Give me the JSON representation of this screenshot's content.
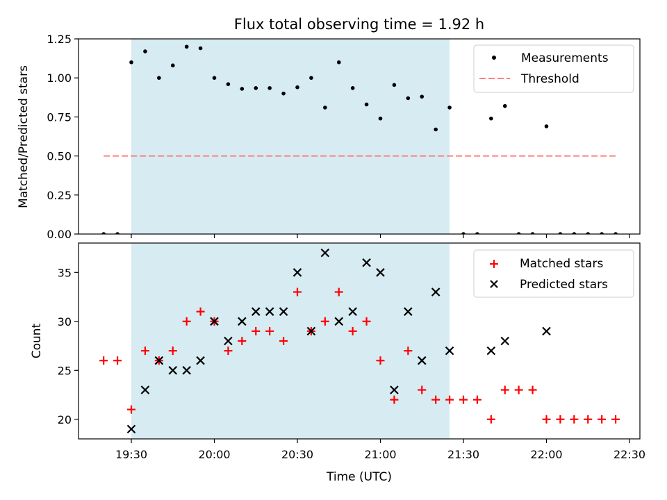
{
  "chart_data": {
    "type": "scatter",
    "title": "Flux total observing time = 1.92 h",
    "xlabel": "Time (UTC)",
    "x_ticks": [
      "19:30",
      "20:00",
      "20:30",
      "21:00",
      "21:30",
      "22:00",
      "22:30"
    ],
    "shaded_interval": {
      "start": "19:30",
      "end": "21:25",
      "color": "#add8e6"
    },
    "panels": [
      {
        "id": "ratio",
        "ylabel": "Matched/Predicted stars",
        "ylim": [
          0,
          1.25
        ],
        "y_ticks": [
          "0.00",
          "0.25",
          "0.50",
          "0.75",
          "1.00",
          "1.25"
        ],
        "legend_position": "top-right",
        "series": [
          {
            "name": "Measurements",
            "marker": "dot",
            "color": "#000000",
            "x": [
              "19:20",
              "19:25",
              "19:30",
              "19:35",
              "19:40",
              "19:45",
              "19:50",
              "19:55",
              "20:00",
              "20:05",
              "20:10",
              "20:15",
              "20:20",
              "20:25",
              "20:30",
              "20:35",
              "20:40",
              "20:45",
              "20:50",
              "20:55",
              "21:00",
              "21:05",
              "21:10",
              "21:15",
              "21:20",
              "21:25",
              "21:30",
              "21:35",
              "21:40",
              "21:45",
              "21:50",
              "21:55",
              "22:00",
              "22:05",
              "22:10",
              "22:15",
              "22:20",
              "22:25"
            ],
            "y": [
              0,
              0,
              1.1,
              1.17,
              1.0,
              1.08,
              1.2,
              1.19,
              1.0,
              0.96,
              0.93,
              0.935,
              0.935,
              0.9,
              0.94,
              1.0,
              0.81,
              1.1,
              0.935,
              0.83,
              0.74,
              0.955,
              0.87,
              0.88,
              0.67,
              0.81,
              0,
              0,
              0.74,
              0.82,
              0,
              0,
              0.69,
              0,
              0,
              0,
              0,
              0
            ]
          },
          {
            "name": "Threshold",
            "marker": "dashed-line",
            "color": "#ff7f7f",
            "x": [
              "19:20",
              "22:25"
            ],
            "y": [
              0.5,
              0.5
            ]
          }
        ]
      },
      {
        "id": "count",
        "ylabel": "Count",
        "ylim": [
          18,
          38
        ],
        "y_ticks": [
          "20",
          "25",
          "30",
          "35"
        ],
        "legend_position": "top-right",
        "series": [
          {
            "name": "Matched stars",
            "marker": "plus",
            "color": "#ff0000",
            "x": [
              "19:20",
              "19:25",
              "19:30",
              "19:35",
              "19:40",
              "19:45",
              "19:50",
              "19:55",
              "20:00",
              "20:05",
              "20:10",
              "20:15",
              "20:20",
              "20:25",
              "20:30",
              "20:35",
              "20:40",
              "20:45",
              "20:50",
              "20:55",
              "21:00",
              "21:05",
              "21:10",
              "21:15",
              "21:20",
              "21:25",
              "21:30",
              "21:35",
              "21:40",
              "21:45",
              "21:50",
              "21:55",
              "22:00",
              "22:05",
              "22:10",
              "22:15",
              "22:20",
              "22:25"
            ],
            "y": [
              26,
              26,
              21,
              27,
              26,
              27,
              30,
              31,
              30,
              27,
              28,
              29,
              29,
              28,
              33,
              29,
              30,
              33,
              29,
              30,
              26,
              22,
              27,
              23,
              22,
              22,
              22,
              22,
              20,
              23,
              23,
              23,
              20,
              20,
              20,
              20,
              20,
              20
            ]
          },
          {
            "name": "Predicted stars",
            "marker": "x",
            "color": "#000000",
            "x": [
              "19:30",
              "19:35",
              "19:40",
              "19:45",
              "19:50",
              "19:55",
              "20:00",
              "20:05",
              "20:10",
              "20:15",
              "20:20",
              "20:25",
              "20:30",
              "20:35",
              "20:40",
              "20:45",
              "20:50",
              "20:55",
              "21:00",
              "21:05",
              "21:10",
              "21:15",
              "21:20",
              "21:25",
              "21:40",
              "21:45",
              "22:00"
            ],
            "y": [
              19,
              23,
              26,
              25,
              25,
              26,
              30,
              28,
              30,
              31,
              31,
              31,
              35,
              29,
              37,
              30,
              31,
              36,
              35,
              23,
              31,
              26,
              33,
              27,
              27,
              28,
              29
            ]
          }
        ]
      }
    ]
  }
}
